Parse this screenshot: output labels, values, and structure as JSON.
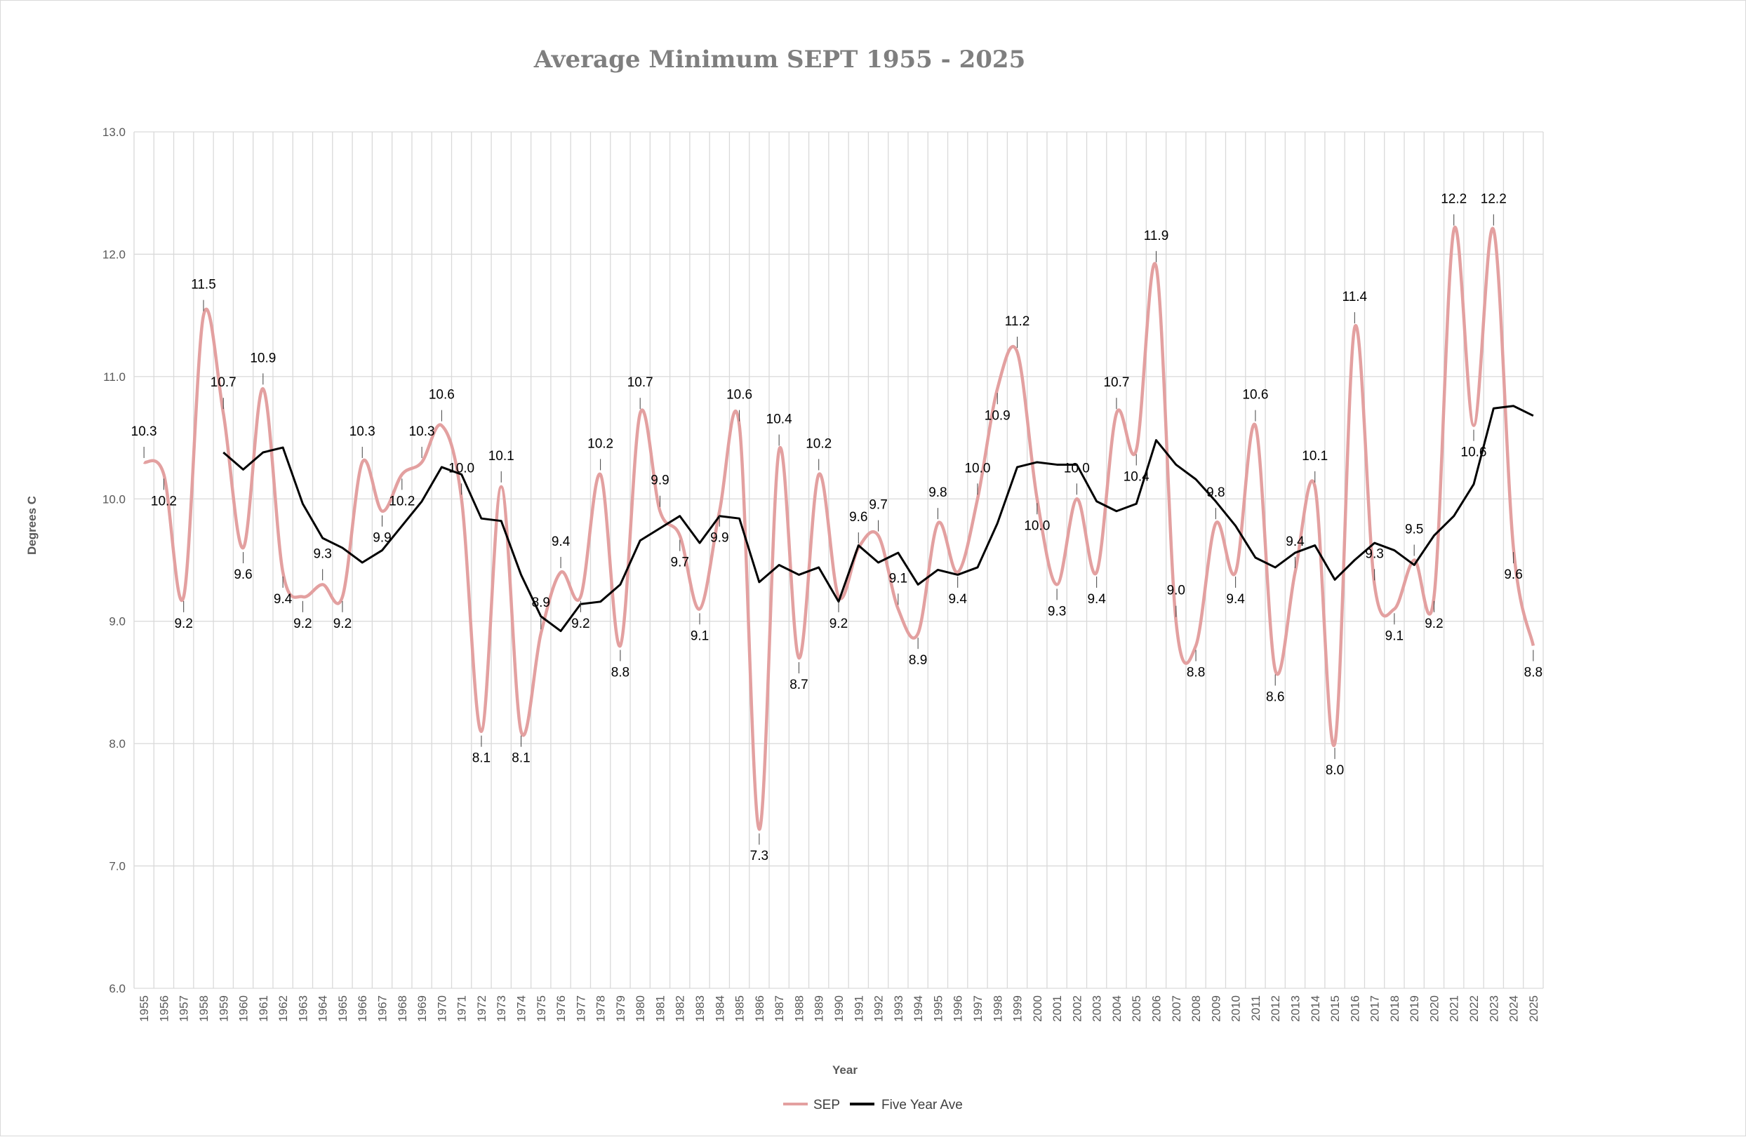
{
  "chart_data": {
    "type": "line",
    "title": "Average Minimum SEPT 1955 - 2025",
    "xlabel": "Year",
    "ylabel": "Degrees C",
    "ylim": [
      6.0,
      13.0
    ],
    "yticks": [
      "6.0",
      "7.0",
      "8.0",
      "9.0",
      "10.0",
      "11.0",
      "12.0",
      "13.0"
    ],
    "grid": "on",
    "legend_position": "bottom",
    "x": [
      "1955",
      "1956",
      "1957",
      "1958",
      "1959",
      "1960",
      "1961",
      "1962",
      "1963",
      "1964",
      "1965",
      "1966",
      "1967",
      "1968",
      "1969",
      "1970",
      "1971",
      "1972",
      "1973",
      "1974",
      "1975",
      "1976",
      "1977",
      "1978",
      "1979",
      "1980",
      "1981",
      "1982",
      "1983",
      "1984",
      "1985",
      "1986",
      "1987",
      "1988",
      "1989",
      "1990",
      "1991",
      "1992",
      "1993",
      "1994",
      "1995",
      "1996",
      "1997",
      "1998",
      "1999",
      "2000",
      "2001",
      "2002",
      "2003",
      "2004",
      "2005",
      "2006",
      "2007",
      "2008",
      "2009",
      "2010",
      "2011",
      "2012",
      "2013",
      "2014",
      "2015",
      "2016",
      "2017",
      "2018",
      "2019",
      "2020",
      "2021",
      "2022",
      "2023",
      "2024",
      "2025"
    ],
    "series": [
      {
        "name": "SEP",
        "color": "#e3a0a0",
        "smooth": true,
        "values": [
          10.3,
          10.2,
          9.2,
          11.5,
          10.7,
          9.6,
          10.9,
          9.4,
          9.2,
          9.3,
          9.2,
          10.3,
          9.9,
          10.2,
          10.3,
          10.6,
          10.0,
          8.1,
          10.1,
          8.1,
          8.9,
          9.4,
          9.2,
          10.2,
          8.8,
          10.7,
          9.9,
          9.7,
          9.1,
          9.9,
          10.6,
          7.3,
          10.4,
          8.7,
          10.2,
          9.2,
          9.6,
          9.7,
          9.1,
          8.9,
          9.8,
          9.4,
          10.0,
          10.9,
          11.2,
          10.0,
          9.3,
          10.0,
          9.4,
          10.7,
          10.4,
          11.9,
          9.0,
          8.8,
          9.8,
          9.4,
          10.6,
          8.6,
          9.4,
          10.1,
          8.0,
          11.4,
          9.3,
          9.1,
          9.5,
          9.2,
          12.2,
          10.6,
          12.2,
          9.6,
          8.8
        ],
        "labels": [
          "10.3",
          "10.2",
          "9.2",
          "11.5",
          "10.7",
          "9.6",
          "10.9",
          "9.4",
          "9.2",
          "9.3",
          "9.2",
          "10.3",
          "9.9",
          "10.2",
          "10.3",
          "10.6",
          "10.0",
          "8.1",
          "10.1",
          "8.1",
          "8.9",
          "9.4",
          "9.2",
          "10.2",
          "8.8",
          "10.7",
          "9.9",
          "9.7",
          "9.1",
          "9.9",
          "10.6",
          "7.3",
          "10.4",
          "8.7",
          "10.2",
          "9.2",
          "9.6",
          "9.7",
          "9.1",
          "8.9",
          "9.8",
          "9.4",
          "10.0",
          "10.9",
          "11.2",
          "10.0",
          "9.3",
          "10.0",
          "9.4",
          "10.7",
          "10.4",
          "11.9",
          "9.0",
          "8.8",
          "9.8",
          "9.4",
          "10.6",
          "8.6",
          "9.4",
          "10.1",
          "8.0",
          "11.4",
          "9.3",
          "9.1",
          "9.5",
          "9.2",
          "12.2",
          "10.6",
          "12.2",
          "9.6",
          "8.8"
        ]
      },
      {
        "name": "Five Year Ave",
        "color": "#000000",
        "smooth": false,
        "values": [
          null,
          null,
          null,
          null,
          10.38,
          10.24,
          10.38,
          10.42,
          9.96,
          9.68,
          9.6,
          9.48,
          9.58,
          9.78,
          9.98,
          10.26,
          10.2,
          9.84,
          9.82,
          9.38,
          9.04,
          8.92,
          9.14,
          9.16,
          9.3,
          9.66,
          9.76,
          9.86,
          9.64,
          9.86,
          9.84,
          9.32,
          9.46,
          9.38,
          9.44,
          9.16,
          9.62,
          9.48,
          9.56,
          9.3,
          9.42,
          9.38,
          9.44,
          9.8,
          10.26,
          10.3,
          10.28,
          10.28,
          9.98,
          9.9,
          9.96,
          10.48,
          10.28,
          10.16,
          9.98,
          9.78,
          9.52,
          9.44,
          9.56,
          9.62,
          9.34,
          9.5,
          9.64,
          9.58,
          9.46,
          9.7,
          9.86,
          10.12,
          10.74,
          10.76,
          10.68
        ]
      }
    ]
  }
}
